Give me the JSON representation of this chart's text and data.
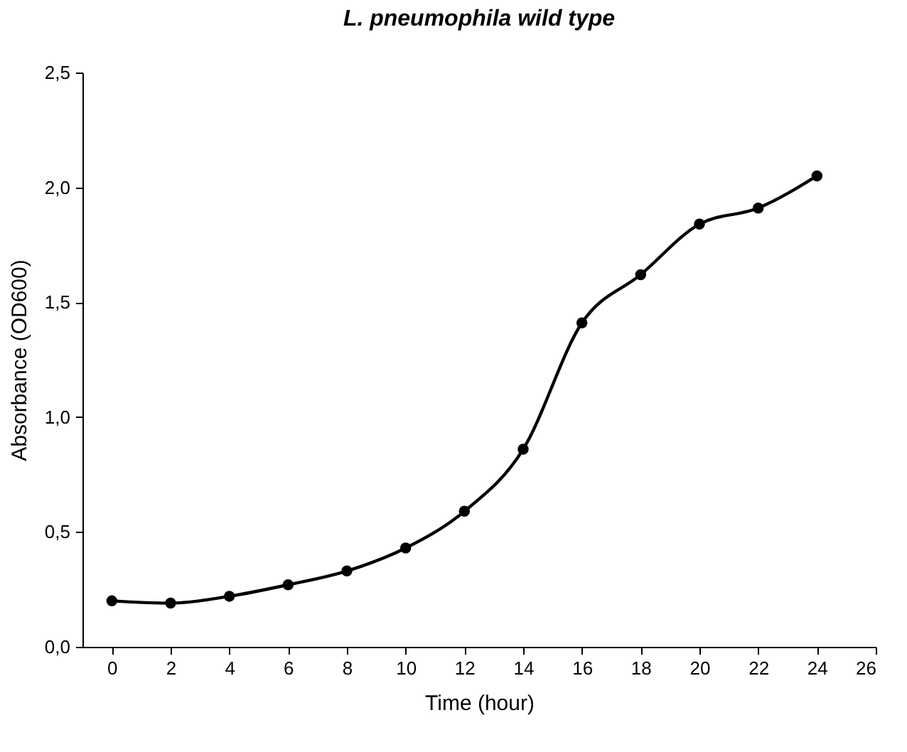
{
  "chart_data": {
    "type": "line",
    "title": "L. pneumophila wild type",
    "xlabel": "Time (hour)",
    "ylabel": "Absorbance (OD600)",
    "x": [
      0,
      2,
      4,
      6,
      8,
      10,
      12,
      14,
      16,
      18,
      20,
      22,
      24
    ],
    "series": [
      {
        "color": "#000000",
        "values": [
          0.2,
          0.19,
          0.22,
          0.27,
          0.33,
          0.43,
          0.59,
          0.86,
          1.41,
          1.62,
          1.84,
          1.91,
          2.05
        ]
      }
    ],
    "xlim": [
      -1,
      26
    ],
    "xticks": [
      0,
      2,
      4,
      6,
      8,
      10,
      12,
      14,
      16,
      18,
      20,
      22,
      24,
      26
    ],
    "ylim": [
      0,
      2.5
    ],
    "yticks": [
      {
        "value": 0,
        "label": "0,0"
      },
      {
        "value": 0.5,
        "label": "0,5"
      },
      {
        "value": 1,
        "label": "1,0"
      },
      {
        "value": 1.5,
        "label": "1,5"
      },
      {
        "value": 2,
        "label": "2,0"
      },
      {
        "value": 2.5,
        "label": "2,5"
      }
    ],
    "grid": false,
    "legend": false,
    "marker": "circle",
    "line_style": "solid"
  }
}
